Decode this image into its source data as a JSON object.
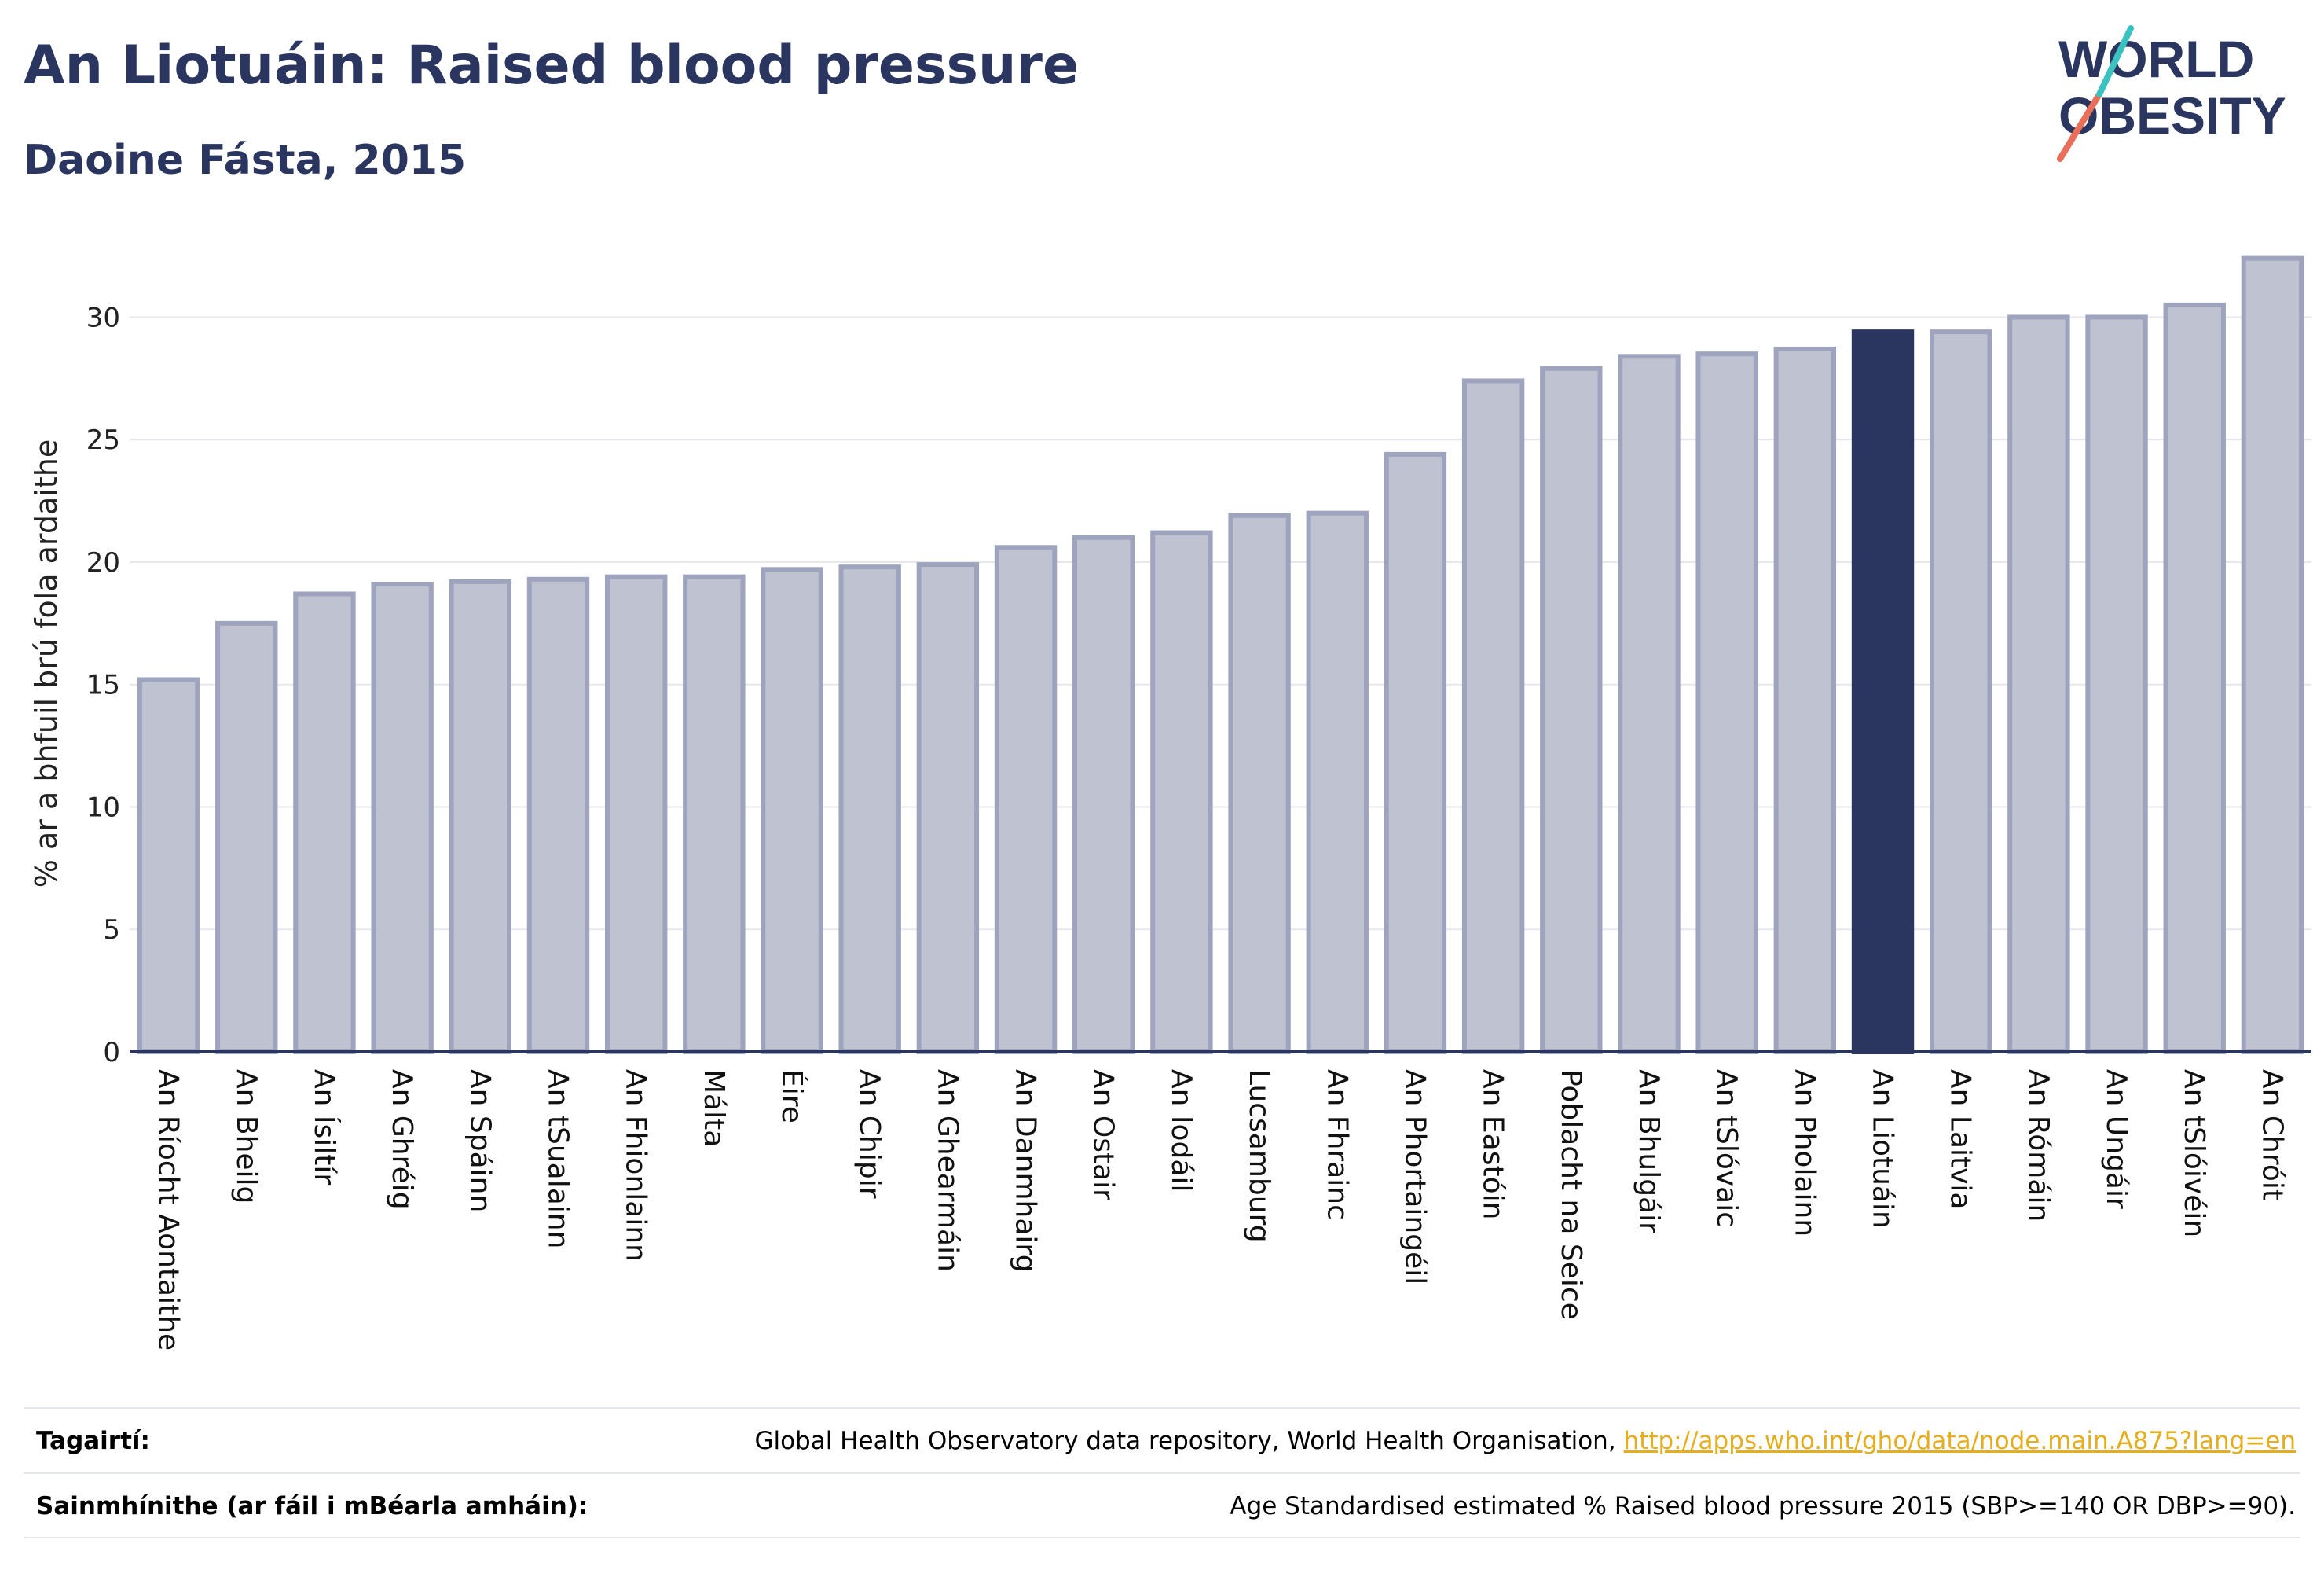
{
  "title": "An Liotuáin: Raised blood pressure",
  "subtitle": "Daoine Fásta, 2015",
  "logo": {
    "line1": "WORLD",
    "line2": "OBESITY"
  },
  "colors": {
    "bar": "#bfc3d1",
    "bar_stroke": "#9ea4bd",
    "highlight": "#2a3560",
    "grid": "#e6e8ee",
    "axis": "#2a3560"
  },
  "chart_data": {
    "type": "bar",
    "ylabel": "% ar a bhfuil brú fola ardaithe",
    "ylim": [
      0,
      33
    ],
    "yticks": [
      0,
      5,
      10,
      15,
      20,
      25,
      30
    ],
    "grid": true,
    "highlight_category": "An Liotuáin",
    "categories": [
      "An Ríocht Aontaithe",
      "An Bheilg",
      "An Ísiltír",
      "An Ghréig",
      "An Spáinn",
      "An tSualainn",
      "An Fhionlainn",
      "Málta",
      "Éire",
      "An Chipir",
      "An Ghearmáin",
      "An Danmhairg",
      "An Ostair",
      "An Iodáil",
      "Lucsamburg",
      "An Fhrainc",
      "An Phortaingéil",
      "An Eastóin",
      "Poblacht na Seice",
      "An Bhulgáir",
      "An tSlóvaic",
      "An Pholainn",
      "An Liotuáin",
      "An Laitvia",
      "An Rómáin",
      "An Ungáir",
      "An tSlóivéin",
      "An Chróit"
    ],
    "values": [
      15.2,
      17.5,
      18.7,
      19.1,
      19.2,
      19.3,
      19.4,
      19.4,
      19.7,
      19.8,
      19.9,
      20.6,
      21.0,
      21.2,
      21.9,
      22.0,
      24.4,
      27.4,
      27.9,
      28.4,
      28.5,
      28.7,
      29.4,
      29.4,
      30.0,
      30.0,
      30.5,
      32.4
    ]
  },
  "footer": {
    "references_label": "Tagairtí:",
    "references_text": "Global Health Observatory data repository, World Health Organisation, ",
    "references_link": "http://apps.who.int/gho/data/node.main.A875?lang=en",
    "definitions_label": "Sainmhínithe (ar fáil i mBéarla amháin):",
    "definitions_text": "Age Standardised estimated % Raised blood pressure 2015 (SBP>=140 OR DBP>=90)."
  }
}
